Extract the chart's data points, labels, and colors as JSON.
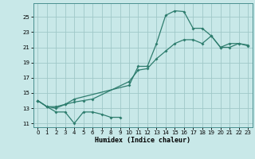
{
  "xlabel": "Humidex (Indice chaleur)",
  "xlim": [
    -0.5,
    23.5
  ],
  "ylim": [
    10.5,
    26.8
  ],
  "xticks": [
    0,
    1,
    2,
    3,
    4,
    5,
    6,
    7,
    8,
    9,
    10,
    11,
    12,
    13,
    14,
    15,
    16,
    17,
    18,
    19,
    20,
    21,
    22,
    23
  ],
  "yticks": [
    11,
    13,
    15,
    17,
    19,
    21,
    23,
    25
  ],
  "background_color": "#c8e8e8",
  "grid_color": "#a0c8c8",
  "line_color": "#2e7d6e",
  "line1_x": [
    0,
    1,
    2,
    3,
    4,
    5,
    6,
    7,
    8,
    9
  ],
  "line1_y": [
    14.0,
    13.2,
    12.5,
    12.5,
    11.0,
    12.5,
    12.5,
    12.2,
    11.8,
    11.8
  ],
  "line2_x": [
    0,
    1,
    2,
    3,
    4,
    10,
    11,
    12,
    13,
    14,
    15,
    16,
    17,
    18,
    19,
    20,
    21,
    22,
    23
  ],
  "line2_y": [
    14.0,
    13.2,
    13.0,
    13.5,
    14.2,
    16.0,
    18.5,
    18.5,
    21.5,
    25.2,
    25.8,
    25.7,
    23.5,
    23.5,
    22.5,
    21.0,
    21.0,
    21.5,
    21.2
  ],
  "line3_x": [
    0,
    1,
    2,
    3,
    4,
    5,
    6,
    10,
    11,
    12,
    13,
    14,
    15,
    16,
    17,
    18,
    19,
    20,
    21,
    22,
    23
  ],
  "line3_y": [
    14.0,
    13.2,
    13.2,
    13.5,
    13.8,
    14.0,
    14.2,
    16.5,
    18.0,
    18.2,
    19.5,
    20.5,
    21.5,
    22.0,
    22.0,
    21.5,
    22.5,
    21.0,
    21.5,
    21.5,
    21.3
  ]
}
